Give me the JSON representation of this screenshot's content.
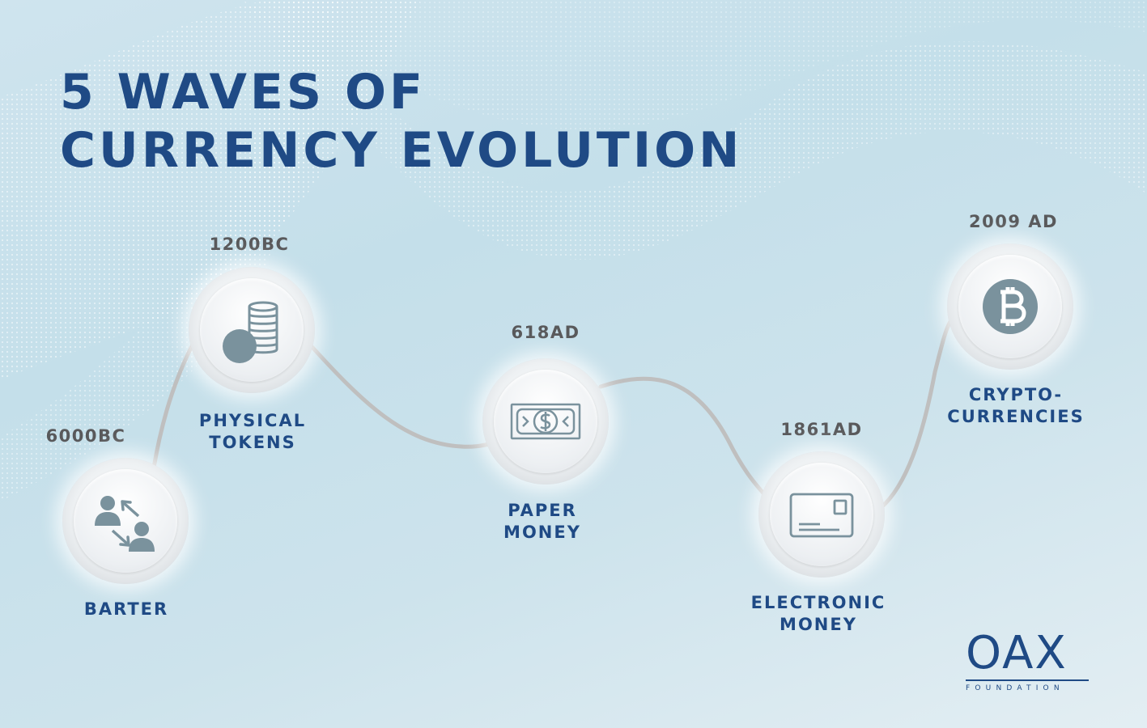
{
  "title": {
    "line1": "5 WAVES OF",
    "line2": "CURRENCY EVOLUTION"
  },
  "stages": [
    {
      "id": "barter",
      "date": "6000BC",
      "label": [
        "BARTER"
      ],
      "icon": "barter-exchange-icon"
    },
    {
      "id": "physical-tokens",
      "date": "1200BC",
      "label": [
        "PHYSICAL",
        "TOKENS"
      ],
      "icon": "coins-stack-icon"
    },
    {
      "id": "paper-money",
      "date": "618AD",
      "label": [
        "PAPER",
        "MONEY"
      ],
      "icon": "banknote-icon"
    },
    {
      "id": "electronic-money",
      "date": "1861AD",
      "label": [
        "ELECTRONIC",
        "MONEY"
      ],
      "icon": "payment-card-icon"
    },
    {
      "id": "cryptocurrencies",
      "date": "2009 AD",
      "label": [
        "CRYPTO-",
        "CURRENCIES"
      ],
      "icon": "bitcoin-icon"
    }
  ],
  "logo": {
    "mark": "OAX",
    "sub": "FOUNDATION"
  },
  "colors": {
    "title": "#1f4a85",
    "date": "#59595b",
    "icon": "#7a929d",
    "path": "#bfbfbf"
  }
}
